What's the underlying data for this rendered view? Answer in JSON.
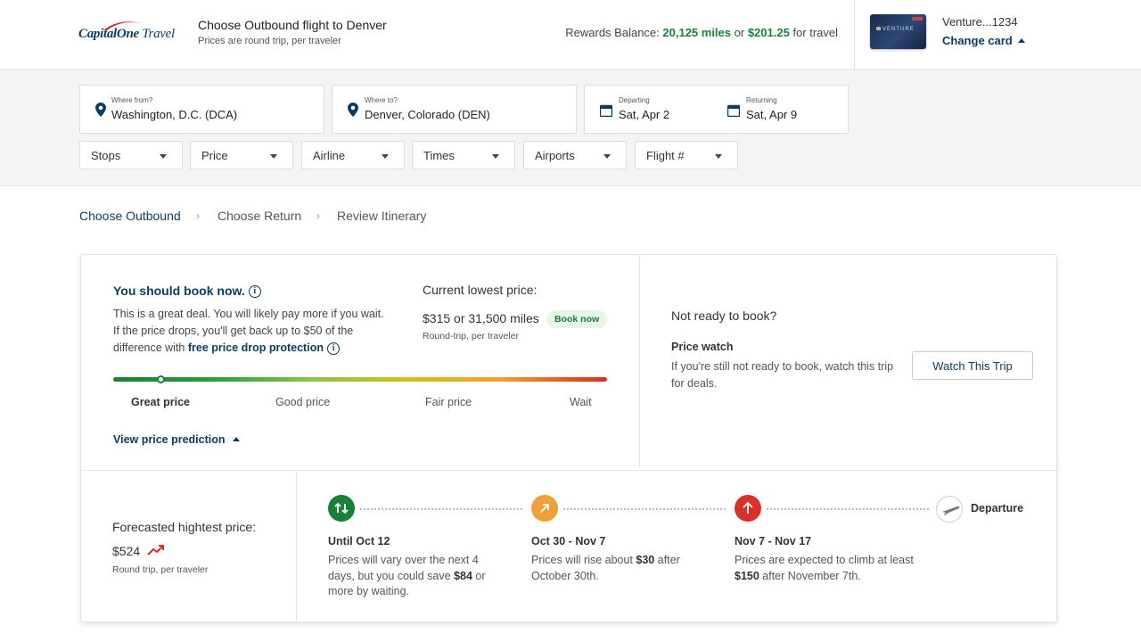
{
  "header": {
    "logo_brand": "Capital",
    "logo_one": "One",
    "logo_travel": "Travel",
    "title": "Choose Outbound flight to Denver",
    "subtitle": "Prices are round trip, per traveler",
    "rewards_prefix": "Rewards Balance: ",
    "rewards_miles": "20,125 miles",
    "rewards_or": " or ",
    "rewards_cash": "$201.25",
    "rewards_suffix": " for travel",
    "card_logo_text": "VENTURE",
    "card_name": "Venture...1234",
    "change_card": "Change card"
  },
  "search": {
    "from_label": "Where from?",
    "from_value": "Washington, D.C. (DCA)",
    "to_label": "Where to?",
    "to_value": "Denver, Colorado (DEN)",
    "depart_label": "Departing",
    "depart_value": "Sat, Apr 2",
    "return_label": "Returning",
    "return_value": "Sat, Apr 9"
  },
  "filters": [
    "Stops",
    "Price",
    "Airline",
    "Times",
    "Airports",
    "Flight #"
  ],
  "breadcrumb": {
    "step1": "Choose Outbound",
    "step2": "Choose Return",
    "step3": "Review Itinerary",
    "separator": "›"
  },
  "recommendation": {
    "title": "You should book now.",
    "body_pre": "This is a great deal. You will likely pay more if you wait. If the price drops, you'll get back up to $50 of the difference with ",
    "body_link": "free price drop protection",
    "lowest_title": "Current lowest price:",
    "lowest_price": "$315",
    "lowest_or": " or ",
    "lowest_miles": "31,500 miles",
    "book_now": "Book now",
    "lowest_sub": "Round-trip, per traveler",
    "gauge_labels": [
      "Great price",
      "Good price",
      "Fair price",
      "Wait"
    ],
    "gauge_position": "Great price",
    "view_prediction": "View price prediction"
  },
  "watch": {
    "title": "Not ready to book?",
    "subtitle": "Price watch",
    "body": "If you're still not ready to book, watch this trip for deals.",
    "button": "Watch This Trip"
  },
  "forecast": {
    "title": "Forecasted hightest price:",
    "price": "$524",
    "sub": "Round trip, per traveler",
    "steps": [
      {
        "label": "Until Oct 12",
        "pre": "Prices will vary over the next 4 days, but you could save ",
        "bold": "$84",
        "post": " or more by waiting.",
        "color": "#1a7f37"
      },
      {
        "label": "Oct 30 - Nov 7",
        "pre": "Prices will rise about ",
        "bold": "$30",
        "post": " after October 30th.",
        "color": "#f0a03a"
      },
      {
        "label": "Nov 7 - Nov 17",
        "pre": "Prices are expected to climb at least ",
        "bold": "$150",
        "post": " after November 7th.",
        "color": "#d9302a"
      }
    ],
    "departure": "Departure"
  },
  "colors": {
    "brand_navy": "#0b3b5f",
    "green": "#1a7f37",
    "orange": "#f0a03a",
    "red": "#d9302a"
  }
}
